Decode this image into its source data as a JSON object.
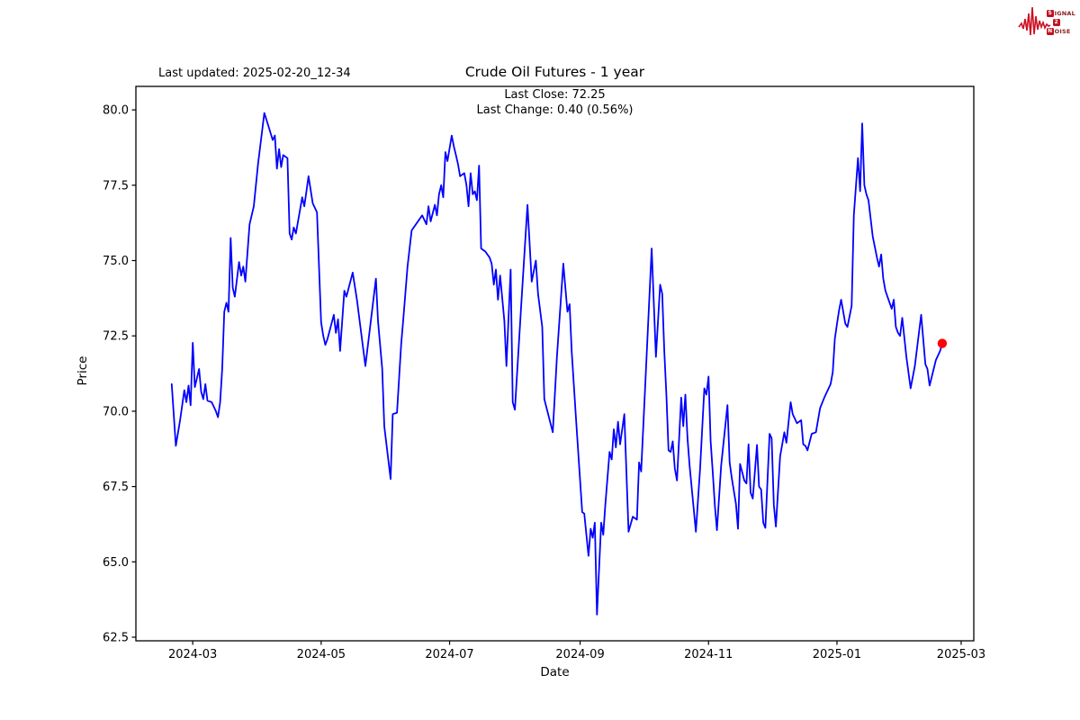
{
  "branding": {
    "rows": [
      {
        "initial": "S",
        "rest": "IGNAL"
      },
      {
        "initial": "2",
        "rest": ""
      },
      {
        "initial": "N",
        "rest": "OISE"
      }
    ],
    "waveform_color": "#cc1122",
    "box_color": "#c1121f",
    "text_color": "#8b1a1a"
  },
  "header": {
    "last_updated": "Last updated: 2025-02-20_12-34",
    "title": "Crude Oil Futures - 1 year",
    "subtitle_line1": "Last Close: 72.25",
    "subtitle_line2": "Last Change: 0.40 (0.56%)"
  },
  "chart_data": {
    "type": "line",
    "title": "Crude Oil Futures - 1 year",
    "xlabel": "Date",
    "ylabel": "Price",
    "last_close": 72.25,
    "last_change": "0.40 (0.56%)",
    "line_color": "#0000ff",
    "marker_color": "#ff0000",
    "grid": false,
    "legend": "none",
    "ylim": [
      62.38,
      80.78
    ],
    "xlim": [
      "2024-02-03",
      "2025-03-07"
    ],
    "y_ticks": [
      62.5,
      65.0,
      67.5,
      70.0,
      72.5,
      75.0,
      77.5,
      80.0
    ],
    "x_ticks": [
      {
        "label": "2024-03",
        "date": "2024-03-01"
      },
      {
        "label": "2024-05",
        "date": "2024-05-01"
      },
      {
        "label": "2024-07",
        "date": "2024-07-01"
      },
      {
        "label": "2024-09",
        "date": "2024-09-01"
      },
      {
        "label": "2024-11",
        "date": "2024-11-01"
      },
      {
        "label": "2025-01",
        "date": "2025-01-01"
      },
      {
        "label": "2025-03",
        "date": "2025-03-01"
      }
    ],
    "end_marker": {
      "date": "2025-02-20",
      "value": 72.25
    },
    "series": [
      {
        "name": "Crude Oil Futures price",
        "dates": [
          "2024-02-20",
          "2024-02-22",
          "2024-02-24",
          "2024-02-26",
          "2024-02-27",
          "2024-02-28",
          "2024-02-29",
          "2024-03-01",
          "2024-03-02",
          "2024-03-04",
          "2024-03-05",
          "2024-03-06",
          "2024-03-07",
          "2024-03-08",
          "2024-03-10",
          "2024-03-12",
          "2024-03-13",
          "2024-03-14",
          "2024-03-15",
          "2024-03-16",
          "2024-03-17",
          "2024-03-18",
          "2024-03-19",
          "2024-03-20",
          "2024-03-21",
          "2024-03-23",
          "2024-03-24",
          "2024-03-25",
          "2024-03-26",
          "2024-03-28",
          "2024-03-30",
          "2024-04-01",
          "2024-04-04",
          "2024-04-06",
          "2024-04-08",
          "2024-04-09",
          "2024-04-10",
          "2024-04-11",
          "2024-04-12",
          "2024-04-13",
          "2024-04-15",
          "2024-04-16",
          "2024-04-17",
          "2024-04-18",
          "2024-04-19",
          "2024-04-22",
          "2024-04-23",
          "2024-04-24",
          "2024-04-25",
          "2024-04-27",
          "2024-04-29",
          "2024-05-01",
          "2024-05-02",
          "2024-05-03",
          "2024-05-04",
          "2024-05-07",
          "2024-05-08",
          "2024-05-09",
          "2024-05-10",
          "2024-05-12",
          "2024-05-13",
          "2024-05-16",
          "2024-05-18",
          "2024-05-22",
          "2024-05-27",
          "2024-05-28",
          "2024-05-30",
          "2024-05-31",
          "2024-06-03",
          "2024-06-04",
          "2024-06-06",
          "2024-06-08",
          "2024-06-09",
          "2024-06-11",
          "2024-06-12",
          "2024-06-13",
          "2024-06-18",
          "2024-06-20",
          "2024-06-21",
          "2024-06-22",
          "2024-06-24",
          "2024-06-25",
          "2024-06-26",
          "2024-06-27",
          "2024-06-28",
          "2024-06-29",
          "2024-06-30",
          "2024-07-02",
          "2024-07-03",
          "2024-07-04",
          "2024-07-05",
          "2024-07-06",
          "2024-07-08",
          "2024-07-09",
          "2024-07-10",
          "2024-07-11",
          "2024-07-12",
          "2024-07-13",
          "2024-07-14",
          "2024-07-15",
          "2024-07-16",
          "2024-07-18",
          "2024-07-20",
          "2024-07-21",
          "2024-07-22",
          "2024-07-23",
          "2024-07-24",
          "2024-07-25",
          "2024-07-27",
          "2024-07-28",
          "2024-07-30",
          "2024-07-31",
          "2024-08-01",
          "2024-08-04",
          "2024-08-07",
          "2024-08-09",
          "2024-08-11",
          "2024-08-12",
          "2024-08-14",
          "2024-08-15",
          "2024-08-19",
          "2024-08-21",
          "2024-08-24",
          "2024-08-26",
          "2024-08-27",
          "2024-08-28",
          "2024-08-30",
          "2024-09-02",
          "2024-09-03",
          "2024-09-05",
          "2024-09-06",
          "2024-09-07",
          "2024-09-08",
          "2024-09-09",
          "2024-09-11",
          "2024-09-12",
          "2024-09-13",
          "2024-09-15",
          "2024-09-16",
          "2024-09-17",
          "2024-09-18",
          "2024-09-19",
          "2024-09-20",
          "2024-09-22",
          "2024-09-24",
          "2024-09-26",
          "2024-09-28",
          "2024-09-29",
          "2024-09-30",
          "2024-10-05",
          "2024-10-07",
          "2024-10-09",
          "2024-10-10",
          "2024-10-11",
          "2024-10-12",
          "2024-10-13",
          "2024-10-14",
          "2024-10-15",
          "2024-10-16",
          "2024-10-17",
          "2024-10-19",
          "2024-10-20",
          "2024-10-21",
          "2024-10-22",
          "2024-10-23",
          "2024-10-26",
          "2024-10-28",
          "2024-10-30",
          "2024-10-31",
          "2024-11-01",
          "2024-11-02",
          "2024-11-03",
          "2024-11-04",
          "2024-11-05",
          "2024-11-07",
          "2024-11-10",
          "2024-11-11",
          "2024-11-12",
          "2024-11-14",
          "2024-11-15",
          "2024-11-16",
          "2024-11-18",
          "2024-11-19",
          "2024-11-20",
          "2024-11-21",
          "2024-11-22",
          "2024-11-24",
          "2024-11-25",
          "2024-11-26",
          "2024-11-27",
          "2024-11-28",
          "2024-11-30",
          "2024-12-01",
          "2024-12-02",
          "2024-12-03",
          "2024-12-05",
          "2024-12-07",
          "2024-12-08",
          "2024-12-10",
          "2024-12-11",
          "2024-12-12",
          "2024-12-13",
          "2024-12-15",
          "2024-12-16",
          "2024-12-17",
          "2024-12-18",
          "2024-12-20",
          "2024-12-22",
          "2024-12-24",
          "2024-12-26",
          "2024-12-29",
          "2024-12-30",
          "2024-12-31",
          "2025-01-01",
          "2025-01-02",
          "2025-01-03",
          "2025-01-05",
          "2025-01-06",
          "2025-01-08",
          "2025-01-09",
          "2025-01-11",
          "2025-01-12",
          "2025-01-13",
          "2025-01-14",
          "2025-01-15",
          "2025-01-16",
          "2025-01-18",
          "2025-01-20",
          "2025-01-21",
          "2025-01-22",
          "2025-01-23",
          "2025-01-24",
          "2025-01-25",
          "2025-01-27",
          "2025-01-28",
          "2025-01-29",
          "2025-01-30",
          "2025-01-31",
          "2025-02-01",
          "2025-02-03",
          "2025-02-05",
          "2025-02-07",
          "2025-02-10",
          "2025-02-12",
          "2025-02-13",
          "2025-02-14",
          "2025-02-17",
          "2025-02-19",
          "2025-02-20"
        ],
        "values": [
          70.9,
          68.85,
          69.7,
          70.7,
          70.3,
          70.85,
          70.2,
          72.27,
          70.8,
          71.4,
          70.65,
          70.4,
          70.9,
          70.35,
          70.3,
          70.0,
          69.8,
          70.3,
          71.4,
          73.3,
          73.6,
          73.3,
          75.75,
          74.1,
          73.8,
          74.95,
          74.5,
          74.8,
          74.3,
          76.2,
          76.8,
          78.2,
          79.9,
          79.45,
          79.0,
          79.15,
          78.05,
          78.7,
          78.1,
          78.5,
          78.4,
          75.9,
          75.7,
          76.1,
          75.9,
          77.1,
          76.8,
          77.3,
          77.8,
          76.9,
          76.6,
          72.95,
          72.5,
          72.2,
          72.4,
          73.2,
          72.6,
          73.05,
          72.0,
          74.0,
          73.8,
          74.6,
          73.7,
          71.5,
          74.4,
          73.0,
          71.4,
          69.5,
          67.75,
          69.9,
          69.95,
          72.2,
          73.05,
          74.8,
          75.4,
          76.0,
          76.5,
          76.2,
          76.8,
          76.3,
          76.85,
          76.5,
          77.2,
          77.5,
          77.1,
          78.6,
          78.3,
          79.15,
          78.8,
          78.5,
          78.2,
          77.8,
          77.9,
          77.5,
          76.8,
          77.9,
          77.2,
          77.3,
          77.0,
          78.15,
          75.4,
          75.3,
          75.1,
          74.9,
          74.2,
          74.7,
          73.7,
          74.5,
          73.0,
          71.5,
          74.7,
          70.3,
          70.05,
          73.5,
          76.85,
          74.3,
          75.0,
          73.9,
          72.8,
          70.4,
          69.3,
          71.8,
          74.9,
          73.3,
          73.55,
          72.0,
          69.8,
          66.65,
          66.6,
          65.2,
          66.1,
          65.8,
          66.3,
          63.25,
          66.3,
          65.9,
          66.9,
          68.65,
          68.4,
          69.4,
          68.8,
          69.65,
          68.9,
          69.9,
          66.0,
          66.5,
          66.4,
          68.3,
          68.0,
          75.4,
          71.8,
          74.2,
          73.9,
          72.0,
          70.5,
          68.7,
          68.65,
          69.0,
          68.1,
          67.7,
          70.45,
          69.5,
          70.55,
          69.1,
          68.2,
          66.0,
          68.1,
          70.76,
          70.55,
          71.15,
          69.0,
          68.0,
          66.87,
          66.05,
          68.2,
          70.2,
          68.3,
          67.8,
          66.93,
          66.1,
          68.25,
          67.7,
          67.6,
          68.9,
          67.3,
          67.1,
          68.88,
          67.5,
          67.4,
          66.3,
          66.13,
          69.25,
          69.1,
          66.9,
          66.17,
          68.5,
          69.3,
          68.95,
          70.3,
          69.9,
          69.75,
          69.6,
          69.7,
          68.9,
          68.85,
          68.7,
          69.25,
          69.3,
          70.1,
          70.45,
          70.9,
          71.3,
          72.4,
          72.9,
          73.35,
          73.7,
          72.9,
          72.8,
          73.5,
          76.5,
          78.4,
          77.3,
          79.55,
          77.5,
          77.2,
          77.0,
          75.8,
          75.1,
          74.8,
          75.2,
          74.4,
          74.0,
          73.8,
          73.4,
          73.7,
          72.8,
          72.6,
          72.5,
          73.1,
          71.8,
          70.76,
          71.5,
          73.2,
          71.56,
          71.4,
          70.85,
          71.7,
          72.0,
          72.25
        ]
      }
    ]
  }
}
